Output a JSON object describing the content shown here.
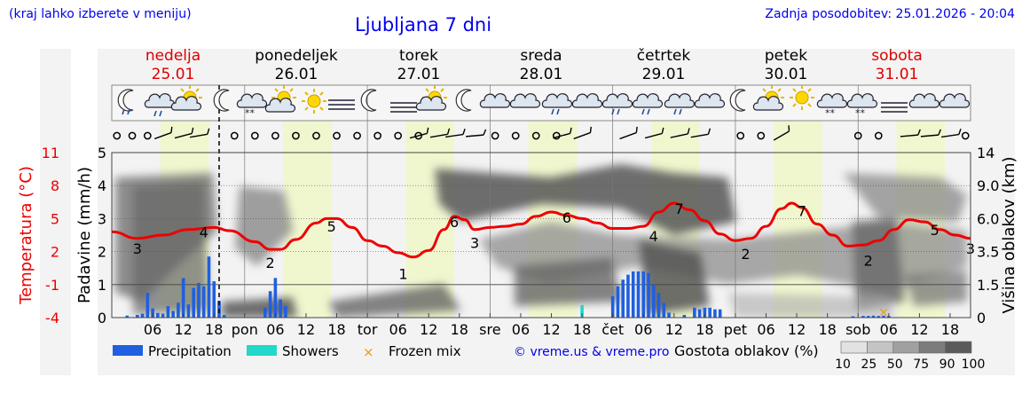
{
  "header": {
    "menu_note": "(kraj lahko izberete v meniju)",
    "title": "Ljubljana 7 dni",
    "updated": "Zadnja posodobitev: 25.01.2026 - 20:04"
  },
  "days": [
    {
      "name": "nedelja",
      "date": "25.01",
      "weekend": true
    },
    {
      "name": "ponedeljek",
      "date": "26.01",
      "weekend": false
    },
    {
      "name": "torek",
      "date": "27.01",
      "weekend": false
    },
    {
      "name": "sreda",
      "date": "28.01",
      "weekend": false
    },
    {
      "name": "četrtek",
      "date": "29.01",
      "weekend": false
    },
    {
      "name": "petek",
      "date": "30.01",
      "weekend": false
    },
    {
      "name": "sobota",
      "date": "31.01",
      "weekend": true
    }
  ],
  "colors": {
    "temperature": "#ee0000",
    "precipitation": "#1f5fe0",
    "showers": "#22d8c8",
    "frozen": "#ee9900",
    "daylight": "#f0f7cf",
    "text_blue": "#0000ee",
    "text_red": "#dd0000"
  },
  "chart_data": {
    "type": "line",
    "title": "Ljubljana 7 dni",
    "x_unit": "hours from 25.01 00:00",
    "xlim": [
      -2,
      166
    ],
    "now_hour": 19,
    "x_ticks": [
      {
        "h": 6,
        "label": "06"
      },
      {
        "h": 12,
        "label": "12"
      },
      {
        "h": 18,
        "label": "18"
      },
      {
        "h": 24,
        "label": "pon"
      },
      {
        "h": 30,
        "label": "06"
      },
      {
        "h": 36,
        "label": "12"
      },
      {
        "h": 42,
        "label": "18"
      },
      {
        "h": 48,
        "label": "tor"
      },
      {
        "h": 54,
        "label": "06"
      },
      {
        "h": 60,
        "label": "12"
      },
      {
        "h": 66,
        "label": "18"
      },
      {
        "h": 72,
        "label": "sre"
      },
      {
        "h": 78,
        "label": "06"
      },
      {
        "h": 84,
        "label": "12"
      },
      {
        "h": 90,
        "label": "18"
      },
      {
        "h": 96,
        "label": "čet"
      },
      {
        "h": 102,
        "label": "06"
      },
      {
        "h": 108,
        "label": "12"
      },
      {
        "h": 114,
        "label": "18"
      },
      {
        "h": 120,
        "label": "pet"
      },
      {
        "h": 126,
        "label": "06"
      },
      {
        "h": 132,
        "label": "12"
      },
      {
        "h": 138,
        "label": "18"
      },
      {
        "h": 144,
        "label": "sob"
      },
      {
        "h": 150,
        "label": "06"
      },
      {
        "h": 156,
        "label": "12"
      },
      {
        "h": 162,
        "label": "18"
      }
    ],
    "daylight": [
      [
        7.5,
        17
      ],
      [
        31.5,
        41
      ],
      [
        55.5,
        65
      ],
      [
        79.5,
        89
      ],
      [
        103.5,
        113
      ],
      [
        127.5,
        137
      ],
      [
        151.5,
        161
      ]
    ],
    "left_axis": {
      "label": "Padavine (mm/h)",
      "ylim": [
        0,
        5
      ],
      "ticks": [
        "0",
        "1",
        "2",
        "3",
        "4",
        "5"
      ]
    },
    "temp_axis": {
      "label": "Temperatura (°C)",
      "ylim": [
        -4,
        11
      ],
      "ticks": [
        "-4",
        "-1",
        "2",
        "5",
        "8",
        "11"
      ]
    },
    "right_axis": {
      "label": "Višina oblakov (km)",
      "ticks": [
        "0",
        "1.5",
        "3.5",
        "6.0",
        "9.0",
        "14"
      ]
    },
    "temperature": [
      [
        -2,
        3.8
      ],
      [
        3,
        3.2
      ],
      [
        8,
        3.5
      ],
      [
        13,
        4.0
      ],
      [
        18,
        4.2
      ],
      [
        21,
        3.9
      ],
      [
        26,
        2.9
      ],
      [
        29,
        2.2
      ],
      [
        31,
        2.2
      ],
      [
        34,
        3.1
      ],
      [
        38,
        4.6
      ],
      [
        40,
        5.0
      ],
      [
        42,
        5.0
      ],
      [
        45,
        4.2
      ],
      [
        48,
        3.0
      ],
      [
        51,
        2.5
      ],
      [
        54,
        1.9
      ],
      [
        57,
        1.5
      ],
      [
        60,
        2.1
      ],
      [
        63,
        4.0
      ],
      [
        65,
        5.2
      ],
      [
        67,
        4.9
      ],
      [
        69,
        4.0
      ],
      [
        72,
        4.2
      ],
      [
        75,
        4.3
      ],
      [
        78,
        4.5
      ],
      [
        81,
        5.2
      ],
      [
        84,
        5.6
      ],
      [
        87,
        5.3
      ],
      [
        90,
        5.0
      ],
      [
        93,
        4.6
      ],
      [
        96,
        4.1
      ],
      [
        99,
        4.1
      ],
      [
        102,
        4.3
      ],
      [
        105,
        5.6
      ],
      [
        108,
        6.4
      ],
      [
        111,
        5.8
      ],
      [
        114,
        4.8
      ],
      [
        117,
        3.6
      ],
      [
        120,
        3.0
      ],
      [
        123,
        3.2
      ],
      [
        126,
        4.3
      ],
      [
        129,
        5.9
      ],
      [
        131,
        6.4
      ],
      [
        133,
        6.0
      ],
      [
        136,
        4.5
      ],
      [
        139,
        3.5
      ],
      [
        142,
        2.5
      ],
      [
        145,
        2.6
      ],
      [
        148,
        3.0
      ],
      [
        151,
        4.0
      ],
      [
        154,
        4.9
      ],
      [
        157,
        4.7
      ],
      [
        160,
        4.0
      ],
      [
        163,
        3.5
      ],
      [
        166,
        3.2
      ]
    ],
    "temperature_labels": [
      {
        "h": 3,
        "v": 2.3,
        "text": "3"
      },
      {
        "h": 16,
        "v": 3.8,
        "text": "4"
      },
      {
        "h": 29,
        "v": 1.0,
        "text": "2"
      },
      {
        "h": 41,
        "v": 4.3,
        "text": "5"
      },
      {
        "h": 55,
        "v": 0.0,
        "text": "1"
      },
      {
        "h": 65,
        "v": 4.7,
        "text": "6"
      },
      {
        "h": 69,
        "v": 2.8,
        "text": "3"
      },
      {
        "h": 87,
        "v": 5.1,
        "text": "6"
      },
      {
        "h": 104,
        "v": 3.4,
        "text": "4"
      },
      {
        "h": 109,
        "v": 5.9,
        "text": "7"
      },
      {
        "h": 122,
        "v": 1.8,
        "text": "2"
      },
      {
        "h": 133,
        "v": 5.7,
        "text": "7"
      },
      {
        "h": 146,
        "v": 1.2,
        "text": "2"
      },
      {
        "h": 159,
        "v": 4.0,
        "text": "5"
      },
      {
        "h": 166,
        "v": 2.3,
        "text": "3"
      }
    ],
    "precipitation": [
      [
        1,
        0.06
      ],
      [
        3,
        0.08
      ],
      [
        4,
        0.12
      ],
      [
        5,
        0.75
      ],
      [
        6,
        0.28
      ],
      [
        7,
        0.14
      ],
      [
        8,
        0.12
      ],
      [
        9,
        0.35
      ],
      [
        10,
        0.2
      ],
      [
        11,
        0.45
      ],
      [
        12,
        1.2
      ],
      [
        13,
        0.4
      ],
      [
        14,
        0.9
      ],
      [
        15,
        1.05
      ],
      [
        16,
        0.95
      ],
      [
        17,
        1.85
      ],
      [
        18,
        1.1
      ],
      [
        19,
        0.5
      ],
      [
        20,
        0.08
      ],
      [
        28,
        0.3
      ],
      [
        29,
        0.8
      ],
      [
        30,
        1.2
      ],
      [
        31,
        0.55
      ],
      [
        32,
        0.35
      ],
      [
        96,
        0.65
      ],
      [
        97,
        0.95
      ],
      [
        98,
        1.15
      ],
      [
        99,
        1.3
      ],
      [
        100,
        1.4
      ],
      [
        101,
        1.4
      ],
      [
        102,
        1.4
      ],
      [
        103,
        1.35
      ],
      [
        104,
        1.0
      ],
      [
        105,
        0.75
      ],
      [
        106,
        0.45
      ],
      [
        107,
        0.15
      ],
      [
        110,
        0.08
      ],
      [
        112,
        0.3
      ],
      [
        113,
        0.25
      ],
      [
        114,
        0.3
      ],
      [
        115,
        0.3
      ],
      [
        116,
        0.25
      ],
      [
        117,
        0.25
      ],
      [
        143,
        0.04
      ],
      [
        145,
        0.05
      ],
      [
        146,
        0.05
      ],
      [
        147,
        0.06
      ],
      [
        148,
        0.05
      ],
      [
        149,
        0.06
      ],
      [
        150,
        0.05
      ]
    ],
    "showers": [
      [
        90,
        0.38
      ]
    ],
    "frozen_mix": [
      [
        149,
        0.18
      ]
    ],
    "cloud_density_scale": [
      10,
      25,
      50,
      75,
      90,
      100
    ],
    "legend": [
      "Precipitation",
      "Showers",
      "Frozen mix"
    ],
    "cloud_legend_title": "Gostota oblakov (%)",
    "copyright": "© vreme.us & vreme.pro"
  }
}
